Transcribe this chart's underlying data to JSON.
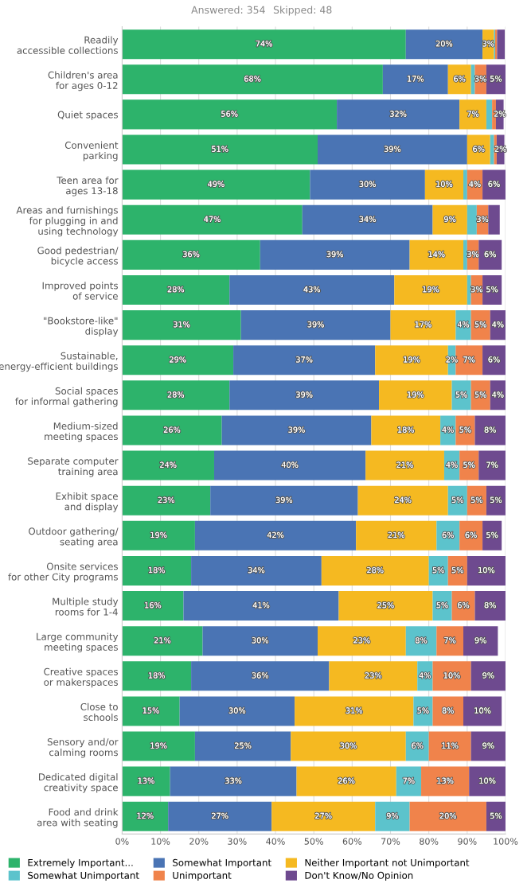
{
  "chart_data": {
    "type": "bar",
    "orientation": "horizontal",
    "stacked": true,
    "annotations": [
      "Answered: 354",
      "Skipped: 48"
    ],
    "categories": [
      "Readily\naccessible collections",
      "Children's area\nfor ages 0-12",
      "Quiet spaces",
      "Convenient\nparking",
      "Teen area for\nages 13-18",
      "Areas and furnishings\nfor plugging in and\nusing technology",
      "Good pedestrian/\nbicycle access",
      "Improved points\nof service",
      "\"Bookstore-like\"\ndisplay",
      "Sustainable,\nenergy-efficient buildings",
      "Social spaces\nfor informal gathering",
      "Medium-sized\nmeeting spaces",
      "Separate computer\ntraining area",
      "Exhibit space\nand display",
      "Outdoor gathering/\nseating area",
      "Onsite services\nfor other City programs",
      "Multiple study\nrooms for 1-4",
      "Large community\nmeeting spaces",
      "Creative spaces\nor makerspaces",
      "Close to\nschools",
      "Sensory and/or\ncalming rooms",
      "Dedicated digital\ncreativity space",
      "Food and drink\narea with seating"
    ],
    "series": [
      {
        "name": "Extremely Important...",
        "color": "#2db36b",
        "values": [
          74,
          68,
          56,
          51,
          49,
          47,
          36,
          28,
          31,
          29,
          28,
          26,
          24,
          23,
          19,
          18,
          16,
          21,
          18,
          15,
          19,
          12.5,
          12
        ],
        "value_labels": [
          "74%",
          "68%",
          "56%",
          "51%",
          "49%",
          "47%",
          "36%",
          "28%",
          "31%",
          "29%",
          "28%",
          "26%",
          "24%",
          "23%",
          "19%",
          "18%",
          "16%",
          "21%",
          "18%",
          "15%",
          "19%",
          "13%",
          "12%"
        ]
      },
      {
        "name": "Somewhat Important",
        "color": "#4a74b4",
        "values": [
          20,
          17,
          32,
          39,
          30,
          34,
          39,
          43,
          39,
          37,
          39,
          39,
          39.5,
          38.5,
          42,
          34,
          40.5,
          30,
          36,
          30,
          25,
          33,
          27
        ],
        "value_labels": [
          "20%",
          "17%",
          "32%",
          "39%",
          "30%",
          "34%",
          "39%",
          "43%",
          "39%",
          "37%",
          "39%",
          "39%",
          "40%",
          "39%",
          "42%",
          "34%",
          "41%",
          "30%",
          "36%",
          "30%",
          "25%",
          "33%",
          "27%"
        ]
      },
      {
        "name": "Neither Important not Unimportant",
        "color": "#f5b921",
        "values": [
          3,
          6,
          7,
          6,
          10,
          9,
          14,
          19,
          17,
          19,
          19,
          18,
          20.5,
          23.5,
          21,
          28,
          24.5,
          23,
          23,
          31,
          30,
          26,
          27
        ],
        "value_labels": [
          "3%",
          "6%",
          "7%",
          "6%",
          "10%",
          "9%",
          "14%",
          "19%",
          "17%",
          "19%",
          "19%",
          "18%",
          "21%",
          "24%",
          "21%",
          "28%",
          "25%",
          "23%",
          "23%",
          "31%",
          "30%",
          "26%",
          "27%"
        ]
      },
      {
        "name": "Somewhat Unimportant",
        "color": "#5cc3cc",
        "values": [
          0.3,
          1,
          1.5,
          1,
          1,
          2.5,
          1,
          1,
          4,
          2,
          5,
          4,
          4,
          5,
          6,
          5,
          5,
          8,
          4,
          5,
          6,
          6.5,
          9
        ],
        "value_labels": [
          null,
          null,
          null,
          null,
          null,
          null,
          null,
          null,
          "4%",
          "2%",
          "5%",
          "4%",
          "4%",
          "5%",
          "6%",
          "5%",
          "5%",
          "8%",
          "4%",
          "5%",
          "6%",
          "7%",
          "9%"
        ]
      },
      {
        "name": "Unimportant",
        "color": "#f0834b",
        "values": [
          0.5,
          3,
          1,
          0.7,
          4,
          3,
          3,
          3,
          5,
          7,
          5,
          5,
          5,
          5,
          6,
          5,
          6,
          7,
          10,
          8,
          11,
          12.5,
          20
        ],
        "value_labels": [
          null,
          "3%",
          null,
          null,
          "4%",
          "3%",
          "3%",
          "3%",
          "5%",
          "7%",
          "5%",
          "5%",
          "5%",
          "5%",
          "6%",
          "5%",
          "6%",
          "7%",
          "10%",
          "8%",
          "11%",
          "13%",
          "20%"
        ]
      },
      {
        "name": "Don't Know/No Opinion",
        "color": "#6e4a8f",
        "values": [
          2,
          5,
          2,
          2,
          6,
          3,
          6,
          5,
          4,
          6,
          4,
          8,
          7,
          5,
          5,
          10,
          8,
          9,
          9,
          10,
          9,
          9.5,
          5
        ],
        "value_labels": [
          null,
          "5%",
          "2%",
          "2%",
          "6%",
          null,
          "6%",
          "5%",
          "4%",
          "6%",
          "4%",
          "8%",
          "7%",
          "5%",
          "5%",
          "10%",
          "8%",
          "9%",
          "9%",
          "10%",
          "9%",
          "10%",
          "5%"
        ]
      }
    ],
    "xlim": [
      0,
      100
    ],
    "xticks": [
      {
        "value": 0,
        "label": "0%"
      },
      {
        "value": 10,
        "label": "10%"
      },
      {
        "value": 20,
        "label": "20%"
      },
      {
        "value": 30,
        "label": "30%"
      },
      {
        "value": 40,
        "label": "40%"
      },
      {
        "value": 50,
        "label": "50%"
      },
      {
        "value": 60,
        "label": "60%"
      },
      {
        "value": 70,
        "label": "70%"
      },
      {
        "value": 80,
        "label": "80%"
      },
      {
        "value": 90,
        "label": "90%"
      },
      {
        "value": 100,
        "label": "100%"
      }
    ],
    "grid": "x",
    "legend": "bottom"
  }
}
